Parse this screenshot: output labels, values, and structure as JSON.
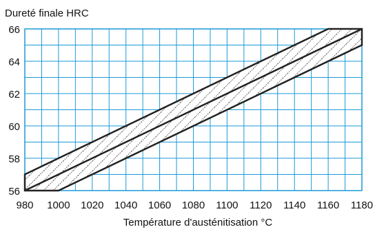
{
  "chart_data": {
    "type": "area",
    "title": "",
    "ylabel": "Dureté finale HRC",
    "xlabel": "Température d'austénitisation °C",
    "xlim": [
      980,
      1180
    ],
    "ylim": [
      56,
      66
    ],
    "x_ticks": [
      980,
      1000,
      1020,
      1040,
      1060,
      1080,
      1100,
      1120,
      1140,
      1160,
      1180
    ],
    "y_ticks": [
      56,
      58,
      60,
      62,
      64,
      66
    ],
    "grid": true,
    "band": {
      "upper": [
        {
          "x": 980,
          "y": 57
        },
        {
          "x": 1160,
          "y": 66
        },
        {
          "x": 1180,
          "y": 66
        }
      ],
      "lower": [
        {
          "x": 980,
          "y": 56
        },
        {
          "x": 1000,
          "y": 56
        },
        {
          "x": 1180,
          "y": 65
        }
      ],
      "center": [
        {
          "x": 980,
          "y": 56
        },
        {
          "x": 1180,
          "y": 66
        }
      ],
      "hatched": true
    },
    "colors": {
      "grid": "#1a9ad6",
      "band_outline": "#222222",
      "hatch": "#333333",
      "background": "#ffffff"
    }
  }
}
